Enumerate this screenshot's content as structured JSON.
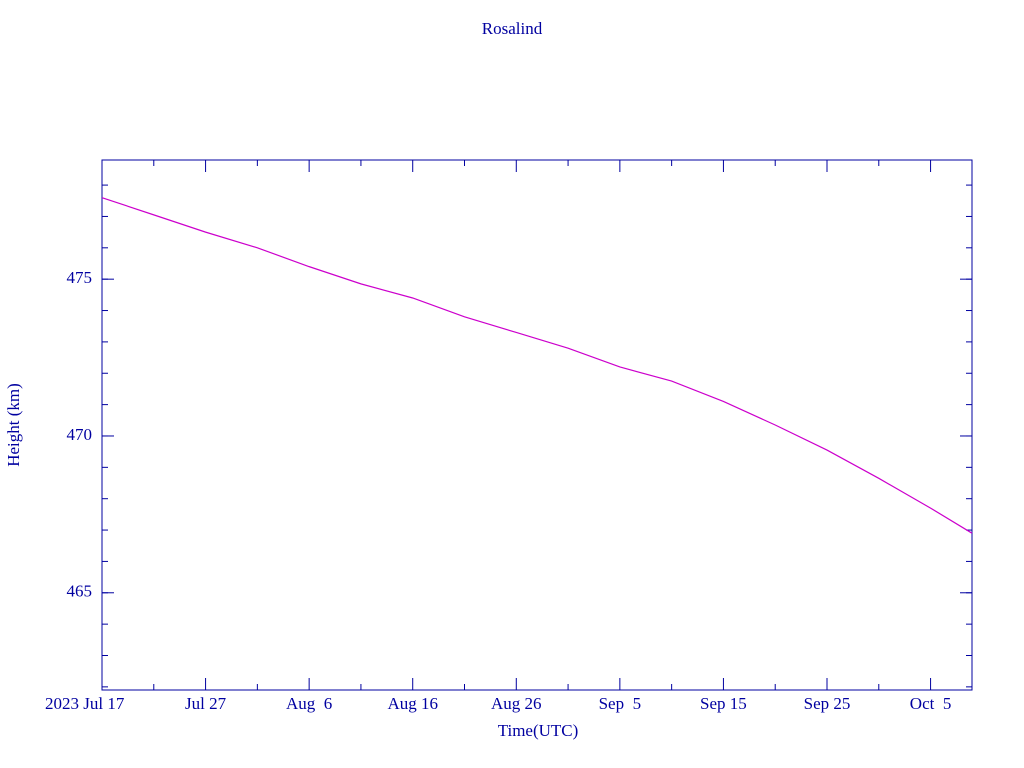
{
  "chart_data": {
    "type": "line",
    "title": "Rosalind",
    "x_label": "Time(UTC)",
    "y_label": "Height (km)",
    "x": [
      "2023-07-17",
      "2023-07-22",
      "2023-07-27",
      "2023-08-01",
      "2023-08-06",
      "2023-08-11",
      "2023-08-16",
      "2023-08-21",
      "2023-08-26",
      "2023-08-31",
      "2023-09-05",
      "2023-09-10",
      "2023-09-15",
      "2023-09-20",
      "2023-09-25",
      "2023-09-30",
      "2023-10-05",
      "2023-10-09"
    ],
    "series": [
      {
        "name": "Rosalind",
        "color": "#cc00cc",
        "values": [
          477.6,
          477.05,
          476.5,
          476.0,
          475.4,
          474.85,
          474.4,
          473.8,
          473.3,
          472.8,
          472.2,
          471.75,
          471.1,
          470.35,
          469.55,
          468.65,
          467.7,
          466.9
        ]
      }
    ],
    "xlim": [
      "2023-07-17",
      "2023-10-09"
    ],
    "xticks": [
      {
        "value": "2023-07-17",
        "label": "2023 Jul 17"
      },
      {
        "value": "2023-07-27",
        "label": "Jul 27"
      },
      {
        "value": "2023-08-06",
        "label": "Aug  6"
      },
      {
        "value": "2023-08-16",
        "label": "Aug 16"
      },
      {
        "value": "2023-08-26",
        "label": "Aug 26"
      },
      {
        "value": "2023-09-05",
        "label": "Sep  5"
      },
      {
        "value": "2023-09-15",
        "label": "Sep 15"
      },
      {
        "value": "2023-09-25",
        "label": "Sep 25"
      },
      {
        "value": "2023-10-05",
        "label": "Oct  5"
      }
    ],
    "ylim": [
      461.9,
      478.8
    ],
    "yticks": [
      465,
      470,
      475
    ]
  }
}
